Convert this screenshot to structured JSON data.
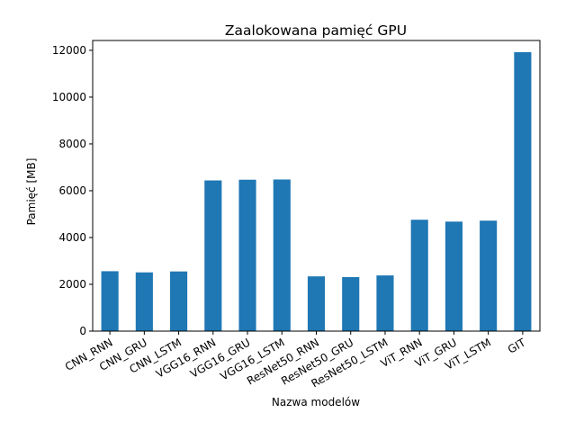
{
  "chart_data": {
    "type": "bar",
    "title": "Zaalokowana pamięć GPU",
    "xlabel": "Nazwa modelów",
    "ylabel": "Pamięć [MB]",
    "categories": [
      "CNN_RNN",
      "CNN_GRU",
      "CNN_LSTM",
      "VGG16_RNN",
      "VGG16_GRU",
      "VGG16_LSTM",
      "ResNet50_RNN",
      "ResNet50_GRU",
      "ResNet50_LSTM",
      "ViT_RNN",
      "ViT_GRU",
      "ViT_LSTM",
      "GIT"
    ],
    "values": [
      2560,
      2510,
      2550,
      6440,
      6470,
      6480,
      2340,
      2310,
      2380,
      4760,
      4680,
      4720,
      11920
    ],
    "ylim": [
      0,
      12000
    ],
    "yticks": [
      0,
      2000,
      4000,
      6000,
      8000,
      10000,
      12000
    ],
    "grid": false,
    "bar_color": "#1f77b4"
  }
}
